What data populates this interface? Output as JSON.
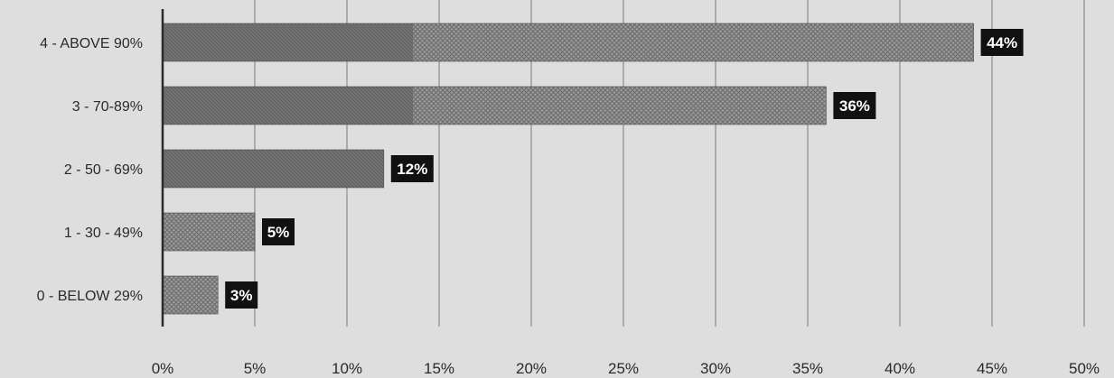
{
  "chart_data": {
    "type": "bar",
    "orientation": "horizontal",
    "categories": [
      "4 - ABOVE 90%",
      "3 - 70-89%",
      "2 - 50 - 69%",
      "1 - 30 - 49%",
      "0 - BELOW 29%"
    ],
    "values": [
      44,
      36,
      12,
      5,
      3
    ],
    "data_labels": [
      "44%",
      "36%",
      "12%",
      "5%",
      "3%"
    ],
    "x_ticks": [
      "0%",
      "5%",
      "10%",
      "15%",
      "20%",
      "25%",
      "30%",
      "35%",
      "40%",
      "45%",
      "50%"
    ],
    "xlim": [
      0,
      50
    ],
    "grid": true,
    "title": "",
    "xlabel": "",
    "ylabel": "",
    "colors": {
      "background": "#dedede",
      "bar_solid": "#6d6d6d",
      "bar_pattern": "#8f8f8f",
      "label_box": "#111111"
    }
  }
}
